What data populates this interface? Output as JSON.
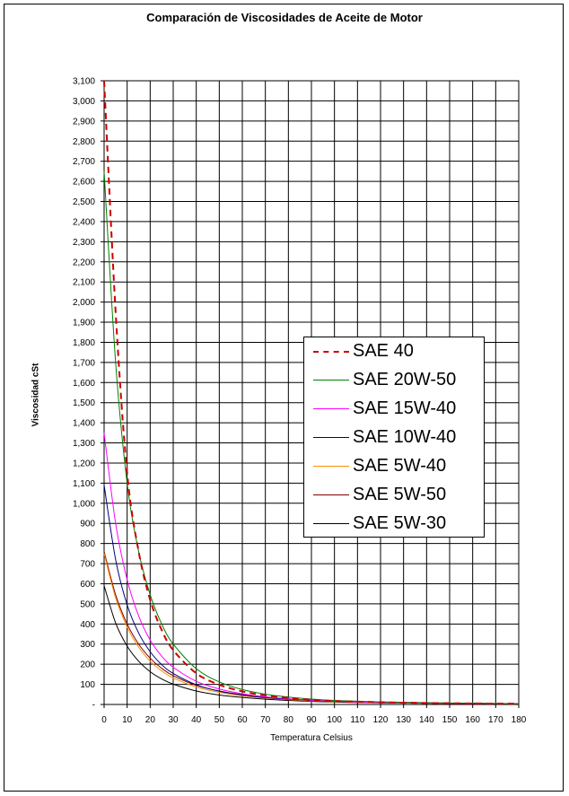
{
  "chart_data": {
    "type": "line",
    "title": "Comparación de Viscosidades de Aceite de Motor",
    "xlabel": "Temperatura Celsius",
    "ylabel": "Viscosidad cSt",
    "xlim": [
      0,
      180
    ],
    "ylim": [
      0,
      3100
    ],
    "x_ticks": [
      0,
      10,
      20,
      30,
      40,
      50,
      60,
      70,
      80,
      90,
      100,
      110,
      120,
      130,
      140,
      150,
      160,
      170,
      180
    ],
    "y_ticks": [
      "-",
      "100",
      "200",
      "300",
      "400",
      "500",
      "600",
      "700",
      "800",
      "900",
      "1,000",
      "1,100",
      "1,200",
      "1,300",
      "1,400",
      "1,500",
      "1,600",
      "1,700",
      "1,800",
      "1,900",
      "2,000",
      "2,100",
      "2,200",
      "2,300",
      "2,400",
      "2,500",
      "2,600",
      "2,700",
      "2,800",
      "2,900",
      "3,000",
      "3,100"
    ],
    "grid": true,
    "legend_position": "right",
    "series": [
      {
        "name": "SAE 40",
        "color": "#cc0000",
        "dashed": true,
        "x": [
          0,
          5,
          10,
          15,
          20,
          25,
          30,
          40,
          50,
          60,
          70,
          80,
          90,
          100,
          120,
          140,
          160,
          180
        ],
        "y": [
          3100,
          1950,
          1150,
          760,
          520,
          370,
          270,
          155,
          98,
          65,
          45,
          32,
          23,
          17,
          11,
          7,
          5,
          4
        ]
      },
      {
        "name": "SAE 20W-50",
        "color": "#008000",
        "dashed": false,
        "x": [
          0,
          5,
          10,
          15,
          20,
          25,
          30,
          40,
          50,
          60,
          70,
          80,
          90,
          100,
          120,
          140,
          160,
          180
        ],
        "y": [
          2650,
          1700,
          1100,
          760,
          545,
          400,
          300,
          178,
          112,
          74,
          51,
          37,
          27,
          20,
          13,
          9,
          6,
          4
        ]
      },
      {
        "name": "SAE 15W-40",
        "color": "#ff00ff",
        "dashed": false,
        "x": [
          0,
          5,
          10,
          15,
          20,
          25,
          30,
          40,
          50,
          60,
          70,
          80,
          90,
          100,
          120,
          140,
          160,
          180
        ],
        "y": [
          1350,
          900,
          620,
          440,
          320,
          240,
          185,
          115,
          77,
          53,
          38,
          28,
          21,
          16,
          10,
          7,
          5,
          4
        ]
      },
      {
        "name": "SAE 10W-40",
        "color": "#000080",
        "dashed": false,
        "x": [
          0,
          5,
          10,
          15,
          20,
          25,
          30,
          40,
          50,
          60,
          70,
          80,
          90,
          100,
          120,
          140,
          160,
          180
        ],
        "y": [
          1090,
          720,
          495,
          355,
          262,
          198,
          154,
          98,
          66,
          47,
          34,
          26,
          20,
          15,
          10,
          7,
          5,
          4
        ]
      },
      {
        "name": "SAE 5W-40",
        "color": "#ff8c00",
        "dashed": false,
        "x": [
          0,
          5,
          10,
          15,
          20,
          25,
          30,
          40,
          50,
          60,
          70,
          80,
          90,
          100,
          120,
          140,
          160,
          180
        ],
        "y": [
          750,
          530,
          385,
          285,
          215,
          167,
          132,
          87,
          60,
          43,
          32,
          24,
          18,
          14,
          9,
          6,
          5,
          4
        ]
      },
      {
        "name": "SAE 5W-50",
        "color": "#800000",
        "dashed": false,
        "x": [
          0,
          5,
          10,
          15,
          20,
          25,
          30,
          40,
          50,
          60,
          70,
          80,
          90,
          100,
          120,
          140,
          160,
          180
        ],
        "y": [
          760,
          545,
          400,
          300,
          230,
          180,
          143,
          95,
          67,
          49,
          37,
          28,
          22,
          17,
          11,
          8,
          6,
          4
        ]
      },
      {
        "name": "SAE 5W-30",
        "color": "#000000",
        "dashed": false,
        "x": [
          0,
          5,
          10,
          15,
          20,
          25,
          30,
          40,
          50,
          60,
          70,
          80,
          90,
          100,
          120,
          140,
          160,
          180
        ],
        "y": [
          590,
          405,
          290,
          215,
          163,
          127,
          101,
          67,
          47,
          35,
          26,
          20,
          15,
          12,
          8,
          6,
          4,
          3
        ]
      }
    ]
  }
}
